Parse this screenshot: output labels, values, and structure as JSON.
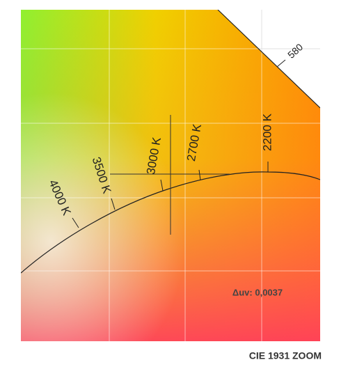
{
  "wavelength_label": "580",
  "cct_labels": [
    "4000 K",
    "3500 K",
    "3000 K",
    "2700 K",
    "2200 K"
  ],
  "annotation": "Δuv: 0,0037",
  "footer": "CIE 1931 ZOOM"
}
